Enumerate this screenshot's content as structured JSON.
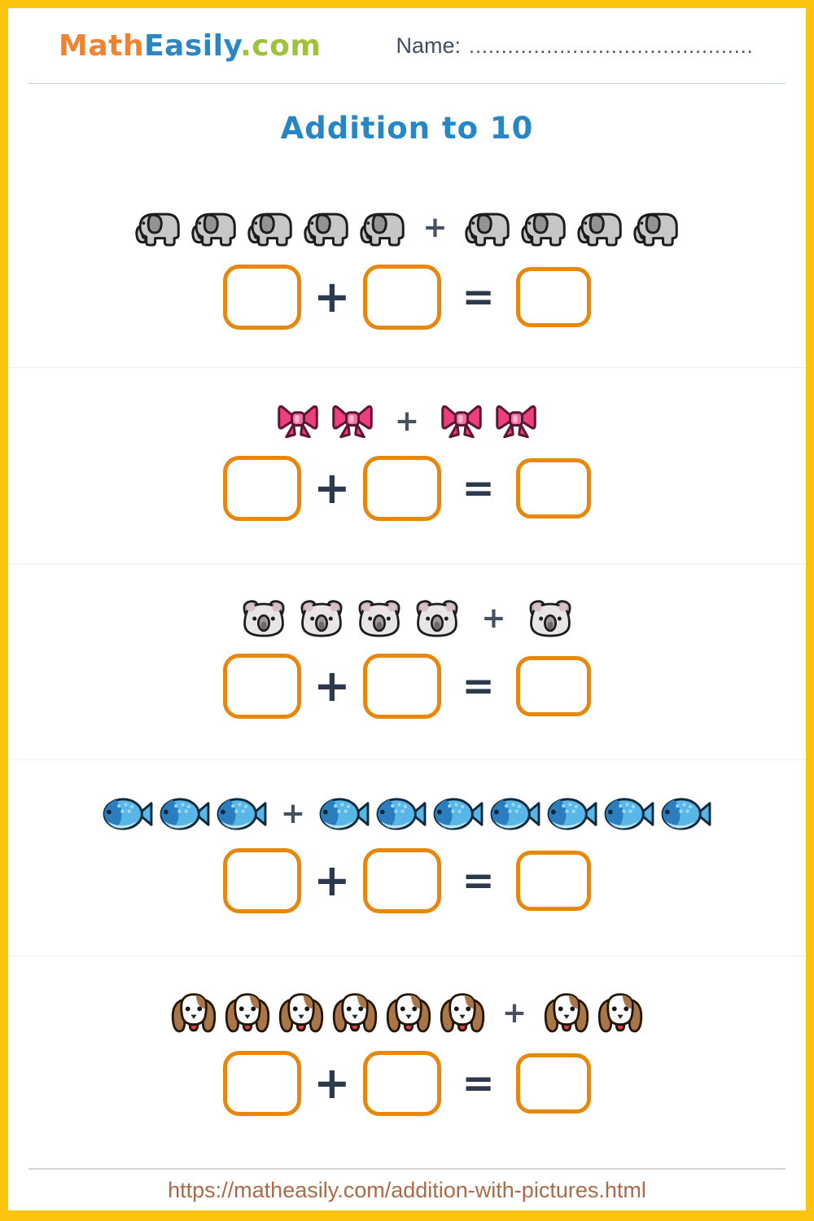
{
  "colors": {
    "frame": "#FBC40F",
    "logo-math": "#EE8330",
    "logo-easily": "#2C86C5",
    "logo-com": "#9DC23C",
    "name-text": "#3F4E66",
    "header-line": "#C6D7DC",
    "title": "#2787C6",
    "box-border": "#E8870E",
    "operator": "#2D3A4D",
    "op-small": "#47515F",
    "row-divider": "#EFEFEF",
    "footer-line": "#D2D2D2",
    "url": "#AC6B46"
  },
  "header": {
    "logo": {
      "part1": "Math",
      "part2": "Easily",
      "part3": ".com"
    },
    "name_label": "Name:",
    "name_line": "................................................................"
  },
  "title": {
    "text": "Addition to 10"
  },
  "operators": {
    "plus": "+",
    "equals": "="
  },
  "problems": [
    {
      "icon": "elephant",
      "icon_name": "elephant-icon",
      "emoji": "🐘",
      "first": 5,
      "second": 4
    },
    {
      "icon": "bow",
      "icon_name": "bow-icon",
      "emoji": "🎀",
      "first": 2,
      "second": 2
    },
    {
      "icon": "koala",
      "icon_name": "koala-icon",
      "emoji": "🐨",
      "first": 4,
      "second": 1
    },
    {
      "icon": "fish",
      "icon_name": "fish-icon",
      "emoji": "🐟",
      "first": 3,
      "second": 7
    },
    {
      "icon": "dog",
      "icon_name": "dog-icon",
      "emoji": "🐶",
      "first": 6,
      "second": 2
    }
  ],
  "answer_box_names": [
    "answer-box-addend-1",
    "answer-box-addend-2",
    "answer-box-sum"
  ],
  "footer": {
    "url": "https://matheasily.com/addition-with-pictures.html"
  }
}
